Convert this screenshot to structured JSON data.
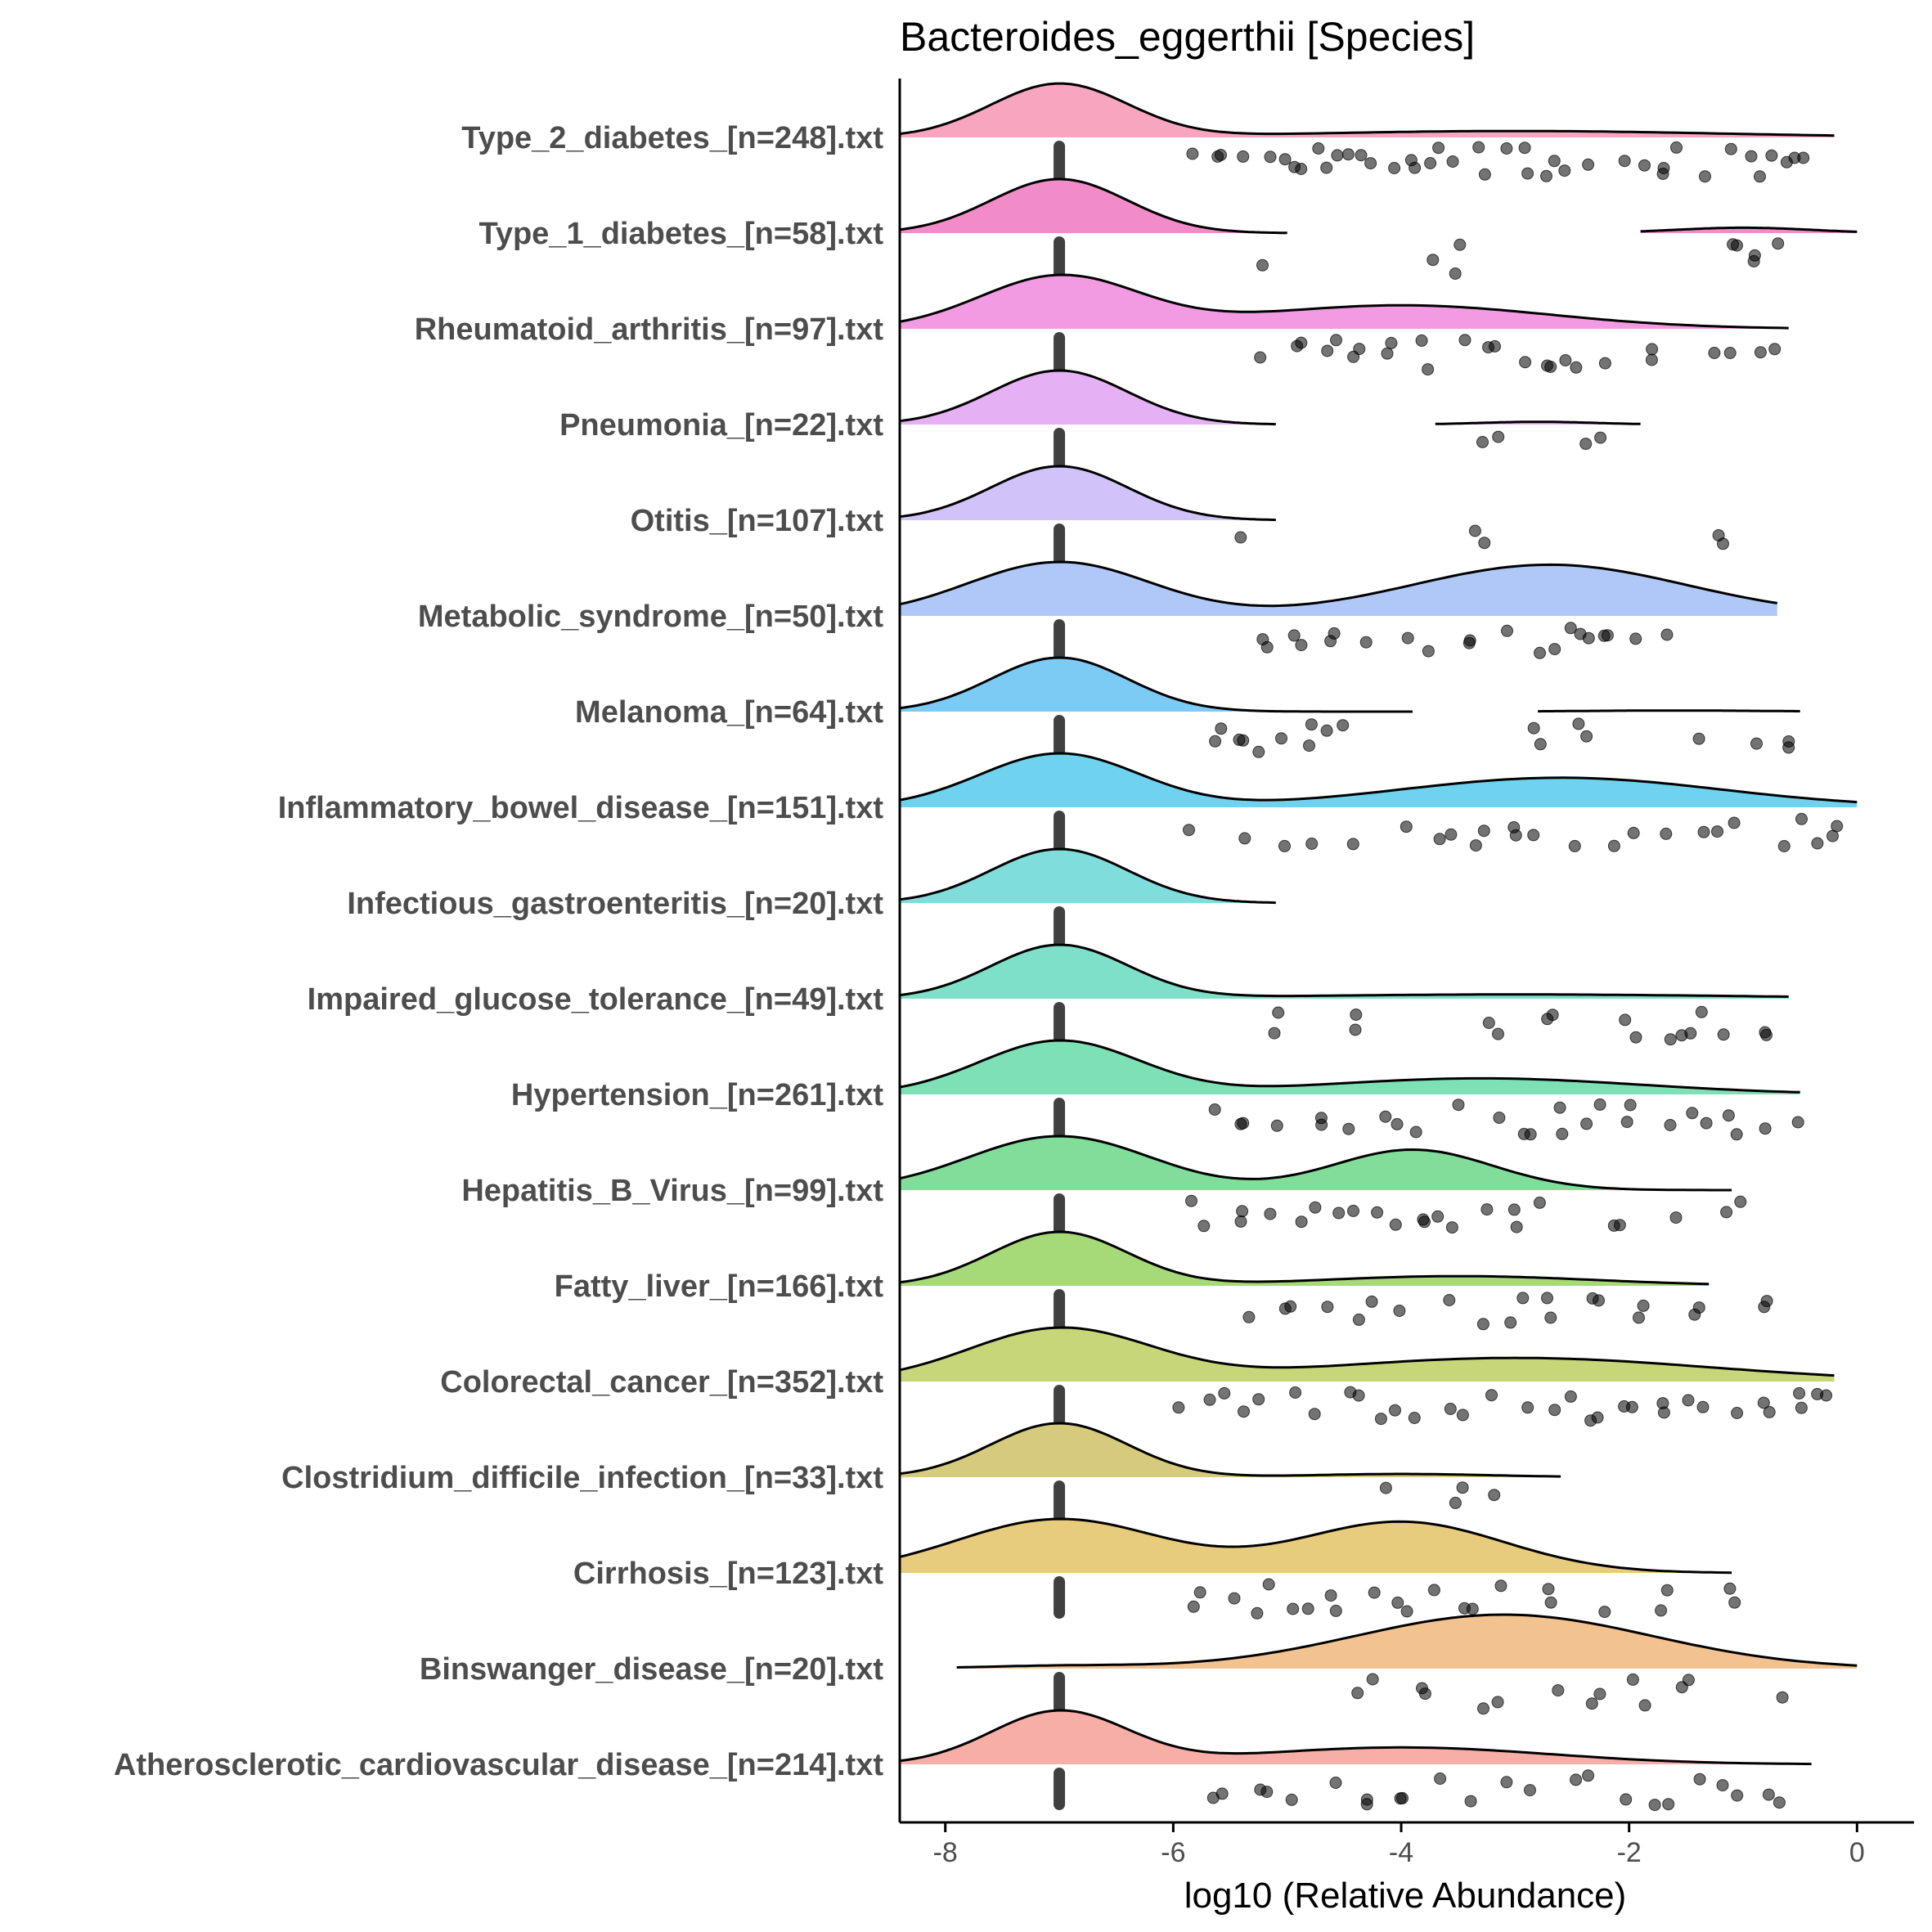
{
  "chart_data": {
    "type": "ridgeline",
    "title": "Bacteroides_eggerthii [Species]",
    "xlabel": "log10 (Relative Abundance)",
    "ylabel": "",
    "xlim": [
      -8.4,
      0.5
    ],
    "xticks": [
      -8,
      -6,
      -4,
      -2,
      0
    ],
    "xtick_labels": [
      "-8",
      "-6",
      "-4",
      "-2",
      "0"
    ],
    "grid": false,
    "legend": "none",
    "zero_value": -7,
    "series": [
      {
        "name": "Type_2_diabetes_[n=248].txt",
        "color": "#F8A5C0",
        "ranges": [
          [
            -8.4,
            -0.2
          ]
        ],
        "modes": [
          [
            -7.0,
            0.6,
            1.0
          ],
          [
            -3.0,
            1.8,
            0.12
          ]
        ],
        "points": [
          -5.8,
          -5.6,
          -5.3,
          -5.1,
          -4.9,
          -4.7,
          -4.5,
          -4.3,
          -4.1,
          -3.9,
          -3.7,
          -3.5,
          -3.3,
          -3.1,
          -2.9,
          -2.7,
          -2.5,
          -2.3,
          -2.1,
          -1.9,
          -1.7,
          -1.5,
          -1.3,
          -1.1,
          -0.9,
          -0.7,
          -0.5
        ]
      },
      {
        "name": "Type_1_diabetes_[n=58].txt",
        "color": "#F28CC8",
        "ranges": [
          [
            -8.4,
            -5.0
          ],
          [
            -1.9,
            0.0
          ]
        ],
        "modes": [
          [
            -7.0,
            0.6,
            1.0
          ],
          [
            -1.0,
            0.6,
            0.1
          ]
        ],
        "points": [
          -5.2,
          -3.8,
          -3.5,
          -1.1,
          -1.0,
          -0.9,
          -0.7
        ]
      },
      {
        "name": "Rheumatoid_arthritis_[n=97].txt",
        "color": "#F29BE3",
        "ranges": [
          [
            -8.4,
            -0.6
          ]
        ],
        "modes": [
          [
            -7.0,
            0.7,
            1.0
          ],
          [
            -4.0,
            1.3,
            0.45
          ]
        ],
        "points": [
          -5.2,
          -4.9,
          -4.6,
          -4.4,
          -4.1,
          -3.8,
          -3.5,
          -3.2,
          -3.0,
          -2.7,
          -2.5,
          -2.2,
          -1.8,
          -1.2,
          -0.8
        ]
      },
      {
        "name": "Pneumonia_[n=22].txt",
        "color": "#E6B0F5",
        "ranges": [
          [
            -8.4,
            -5.1
          ],
          [
            -3.7,
            -1.9
          ]
        ],
        "modes": [
          [
            -7.0,
            0.6,
            1.0
          ],
          [
            -2.8,
            0.5,
            0.05
          ]
        ],
        "points": [
          -3.2,
          -2.3
        ]
      },
      {
        "name": "Otitis_[n=107].txt",
        "color": "#D2C2FA",
        "ranges": [
          [
            -8.4,
            -5.1
          ]
        ],
        "modes": [
          [
            -7.0,
            0.6,
            1.0
          ]
        ],
        "points": [
          -5.4,
          -3.3,
          -1.2
        ]
      },
      {
        "name": "Metabolic_syndrome_[n=50].txt",
        "color": "#B0C8F8",
        "ranges": [
          [
            -8.4,
            -0.7
          ]
        ],
        "modes": [
          [
            -7.0,
            0.8,
            1.0
          ],
          [
            -2.7,
            1.2,
            0.95
          ]
        ],
        "points": [
          -5.2,
          -4.9,
          -4.6,
          -4.3,
          -4.0,
          -3.7,
          -3.4,
          -3.1,
          -2.8,
          -2.6,
          -2.4,
          -2.2,
          -2.0,
          -1.6
        ]
      },
      {
        "name": "Melanoma_[n=64].txt",
        "color": "#7CCBF5",
        "ranges": [
          [
            -8.4,
            -3.9
          ],
          [
            -2.8,
            -0.5
          ]
        ],
        "modes": [
          [
            -7.0,
            0.6,
            1.0
          ],
          [
            -1.6,
            0.8,
            0.02
          ]
        ],
        "points": [
          -5.6,
          -5.4,
          -5.2,
          -5.0,
          -4.8,
          -4.6,
          -2.8,
          -2.4,
          -1.3,
          -0.8,
          -0.6
        ]
      },
      {
        "name": "Inflammatory_bowel_disease_[n=151].txt",
        "color": "#6FD2EE",
        "ranges": [
          [
            -8.4,
            0.0
          ]
        ],
        "modes": [
          [
            -7.0,
            0.7,
            1.0
          ],
          [
            -2.6,
            1.4,
            0.55
          ]
        ],
        "points": [
          -5.9,
          -5.4,
          -5.0,
          -4.7,
          -4.4,
          -3.9,
          -3.6,
          -3.3,
          -3.0,
          -2.8,
          -2.5,
          -2.2,
          -1.9,
          -1.6,
          -1.3,
          -1.0,
          -0.7,
          -0.4,
          -0.2
        ]
      },
      {
        "name": "Infectious_gastroenteritis_[n=20].txt",
        "color": "#7FDDDB",
        "ranges": [
          [
            -8.4,
            -5.1
          ]
        ],
        "modes": [
          [
            -7.0,
            0.6,
            1.0
          ]
        ],
        "points": []
      },
      {
        "name": "Impaired_glucose_tolerance_[n=49].txt",
        "color": "#7EE0C8",
        "ranges": [
          [
            -8.4,
            -0.6
          ]
        ],
        "modes": [
          [
            -7.0,
            0.6,
            1.0
          ],
          [
            -3.0,
            2.0,
            0.08
          ]
        ],
        "points": [
          -5.1,
          -4.4,
          -3.2,
          -2.7,
          -2.0,
          -1.6,
          -1.4,
          -1.2,
          -0.8
        ]
      },
      {
        "name": "Hypertension_[n=261].txt",
        "color": "#7EE0B5",
        "ranges": [
          [
            -8.4,
            -0.5
          ]
        ],
        "modes": [
          [
            -7.0,
            0.7,
            1.0
          ],
          [
            -3.3,
            1.4,
            0.3
          ]
        ],
        "points": [
          -5.6,
          -5.4,
          -5.0,
          -4.7,
          -4.4,
          -4.1,
          -3.8,
          -3.5,
          -3.2,
          -2.9,
          -2.6,
          -2.3,
          -2.0,
          -1.7,
          -1.4,
          -1.1,
          -0.8,
          -0.6
        ]
      },
      {
        "name": "Hepatitis_B_Virus_[n=99].txt",
        "color": "#80DD9A",
        "ranges": [
          [
            -8.4,
            -1.1
          ]
        ],
        "modes": [
          [
            -7.0,
            0.8,
            1.0
          ],
          [
            -3.9,
            0.7,
            0.75
          ]
        ],
        "points": [
          -5.8,
          -5.4,
          -5.1,
          -4.8,
          -4.5,
          -4.2,
          -4.0,
          -3.8,
          -3.6,
          -3.3,
          -3.0,
          -2.7,
          -2.1,
          -1.5,
          -1.1
        ]
      },
      {
        "name": "Fatty_liver_[n=166].txt",
        "color": "#A6D978",
        "ranges": [
          [
            -8.4,
            -1.3
          ]
        ],
        "modes": [
          [
            -7.0,
            0.6,
            1.0
          ],
          [
            -3.5,
            1.2,
            0.18
          ]
        ],
        "points": [
          -5.3,
          -5.0,
          -4.6,
          -4.3,
          -4.0,
          -3.6,
          -3.3,
          -3.0,
          -2.7,
          -2.3,
          -1.9,
          -1.4,
          -0.8
        ]
      },
      {
        "name": "Colorectal_cancer_[n=352].txt",
        "color": "#C8D67A",
        "ranges": [
          [
            -8.4,
            -0.2
          ]
        ],
        "modes": [
          [
            -7.0,
            0.8,
            1.0
          ],
          [
            -3.0,
            1.7,
            0.45
          ]
        ],
        "points": [
          -5.9,
          -5.6,
          -5.3,
          -5.0,
          -4.7,
          -4.4,
          -4.1,
          -3.8,
          -3.5,
          -3.2,
          -2.9,
          -2.6,
          -2.3,
          -2.0,
          -1.7,
          -1.4,
          -1.1,
          -0.8,
          -0.5,
          -0.3
        ]
      },
      {
        "name": "Clostridium_difficile_infection_[n=33].txt",
        "color": "#D6CB7C",
        "ranges": [
          [
            -8.4,
            -2.6
          ]
        ],
        "modes": [
          [
            -7.0,
            0.6,
            1.0
          ],
          [
            -4.0,
            0.8,
            0.06
          ]
        ],
        "points": [
          -4.1,
          -3.5,
          -3.2
        ]
      },
      {
        "name": "Cirrhosis_[n=123].txt",
        "color": "#E8CC7D",
        "ranges": [
          [
            -8.4,
            -1.1
          ]
        ],
        "modes": [
          [
            -7.0,
            0.9,
            1.0
          ],
          [
            -4.0,
            0.9,
            0.95
          ]
        ],
        "points": [
          -5.8,
          -5.5,
          -5.2,
          -4.9,
          -4.6,
          -4.3,
          -4.0,
          -3.7,
          -3.4,
          -3.1,
          -2.7,
          -2.2,
          -1.7,
          -1.1
        ]
      },
      {
        "name": "Binswanger_disease_[n=20].txt",
        "color": "#F2C290",
        "ranges": [
          [
            -7.9,
            0.0
          ]
        ],
        "modes": [
          [
            -3.1,
            1.3,
            1.0
          ],
          [
            -7.0,
            0.7,
            0.05
          ]
        ],
        "points": [
          -4.3,
          -3.8,
          -3.2,
          -2.7,
          -2.3,
          -1.9,
          -1.5,
          -0.7
        ]
      },
      {
        "name": "Atherosclerotic_cardiovascular_disease_[n=214].txt",
        "color": "#F7AEA6",
        "ranges": [
          [
            -8.4,
            -0.4
          ]
        ],
        "modes": [
          [
            -7.0,
            0.6,
            1.0
          ],
          [
            -4.0,
            1.3,
            0.32
          ]
        ],
        "points": [
          -5.6,
          -5.2,
          -4.9,
          -4.6,
          -4.3,
          -4.0,
          -3.7,
          -3.4,
          -3.1,
          -2.8,
          -2.4,
          -2.0,
          -1.7,
          -1.4,
          -1.1,
          -0.8,
          -0.6
        ]
      }
    ]
  }
}
